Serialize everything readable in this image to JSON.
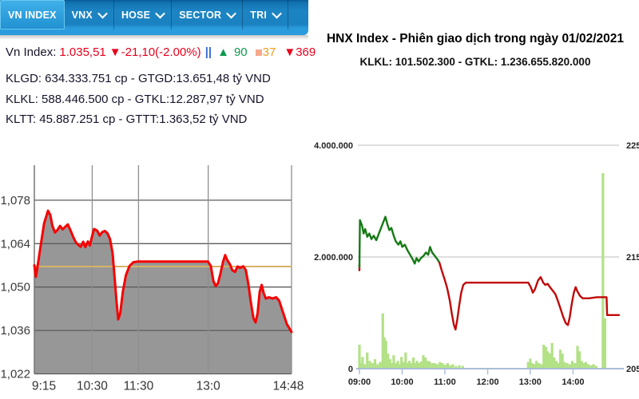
{
  "left_panel": {
    "navbar": {
      "items": [
        {
          "label": "VN INDEX",
          "active": true,
          "has_dropdown": false
        },
        {
          "label": "VNX",
          "active": false,
          "has_dropdown": true
        },
        {
          "label": "HOSE",
          "active": false,
          "has_dropdown": true
        },
        {
          "label": "SECTOR",
          "active": false,
          "has_dropdown": true
        },
        {
          "label": "TRI",
          "active": false,
          "has_dropdown": true
        }
      ]
    },
    "ticker": {
      "label": "Vn Index:",
      "value": "1.035,51",
      "change": "▼-21,10(-2.00%)",
      "separator": "||",
      "up_icon": "▲",
      "up_count": "90",
      "unchanged_count": "37",
      "down_icon": "▼",
      "down_count": "369",
      "colors": {
        "value": "#e8001c",
        "up": "#0d9950",
        "unchanged": "#f09d1e",
        "down": "#e8001c",
        "separator": "#3b6fd4"
      }
    },
    "stats": [
      {
        "text": "KLGD: 634.333.751 cp - GTGD:13.651,48 tỷ VND"
      },
      {
        "text": "KLKL: 588.446.500 cp - GTKL:12.287,97 tỷ VND"
      },
      {
        "text": "KLTT: 45.887.251 cp - GTTT:1.363,52 tỷ VND"
      }
    ]
  },
  "right_panel": {
    "title": "HNX Index - Phiên giao dịch trong ngày 01/02/2021",
    "subtitle": "KLKL: 101.502.300 - GTKL: 1.236.655.820.000"
  },
  "chart_data": [
    {
      "type": "area",
      "name": "VN Index intraday",
      "ylim": [
        1022,
        1088
      ],
      "y_ticks": [
        {
          "label": "1,078",
          "v": 1078
        },
        {
          "label": "1,064",
          "v": 1064
        },
        {
          "label": "1,050",
          "v": 1050
        },
        {
          "label": "1,036",
          "v": 1036
        },
        {
          "label": "1,022",
          "v": 1022
        }
      ],
      "x_ticks": [
        {
          "label": "9:15",
          "f": 0.0
        },
        {
          "label": "10:30",
          "f": 0.225
        },
        {
          "label": "11:30",
          "f": 0.405
        },
        {
          "label": "13:0",
          "f": 0.676
        },
        {
          "label": "14:48",
          "f": 1.0
        }
      ],
      "reference_line": {
        "value": 1056.6,
        "color": "#d7b366"
      },
      "line_color": "#f50000",
      "fill_color": "#979797",
      "grid_color": "#5c5c5c",
      "vgrid_color": "#8f8f8f",
      "series": [
        [
          0.0,
          1057.0
        ],
        [
          0.006,
          1053.3
        ],
        [
          0.014,
          1057.5
        ],
        [
          0.025,
          1063.5
        ],
        [
          0.038,
          1070.5
        ],
        [
          0.053,
          1074.6
        ],
        [
          0.062,
          1073.2
        ],
        [
          0.07,
          1069.8
        ],
        [
          0.08,
          1067.6
        ],
        [
          0.09,
          1068.4
        ],
        [
          0.1,
          1069.7
        ],
        [
          0.11,
          1068.6
        ],
        [
          0.12,
          1069.4
        ],
        [
          0.13,
          1070.2
        ],
        [
          0.142,
          1068.0
        ],
        [
          0.152,
          1066.0
        ],
        [
          0.162,
          1064.3
        ],
        [
          0.172,
          1063.5
        ],
        [
          0.18,
          1063.0
        ],
        [
          0.19,
          1064.6
        ],
        [
          0.198,
          1062.9
        ],
        [
          0.208,
          1064.7
        ],
        [
          0.216,
          1063.4
        ],
        [
          0.224,
          1066.2
        ],
        [
          0.232,
          1068.7
        ],
        [
          0.244,
          1068.2
        ],
        [
          0.254,
          1066.6
        ],
        [
          0.264,
          1067.7
        ],
        [
          0.274,
          1068.1
        ],
        [
          0.284,
          1067.4
        ],
        [
          0.294,
          1065.5
        ],
        [
          0.304,
          1061.0
        ],
        [
          0.312,
          1053.0
        ],
        [
          0.32,
          1045.0
        ],
        [
          0.326,
          1039.6
        ],
        [
          0.334,
          1041.5
        ],
        [
          0.344,
          1048.5
        ],
        [
          0.356,
          1053.8
        ],
        [
          0.37,
          1056.8
        ],
        [
          0.385,
          1058.0
        ],
        [
          0.4,
          1058.2
        ],
        [
          0.675,
          1058.2
        ],
        [
          0.686,
          1056.8
        ],
        [
          0.696,
          1052.0
        ],
        [
          0.705,
          1050.3
        ],
        [
          0.714,
          1051.2
        ],
        [
          0.724,
          1054.5
        ],
        [
          0.734,
          1058.2
        ],
        [
          0.742,
          1060.3
        ],
        [
          0.75,
          1058.7
        ],
        [
          0.76,
          1057.4
        ],
        [
          0.77,
          1055.4
        ],
        [
          0.78,
          1054.9
        ],
        [
          0.79,
          1056.6
        ],
        [
          0.8,
          1056.2
        ],
        [
          0.812,
          1056.7
        ],
        [
          0.822,
          1055.5
        ],
        [
          0.832,
          1051.0
        ],
        [
          0.842,
          1045.0
        ],
        [
          0.852,
          1040.0
        ],
        [
          0.86,
          1038.6
        ],
        [
          0.868,
          1041.5
        ],
        [
          0.876,
          1048.5
        ],
        [
          0.884,
          1050.7
        ],
        [
          0.892,
          1048.0
        ],
        [
          0.9,
          1046.3
        ],
        [
          0.912,
          1046.7
        ],
        [
          0.926,
          1046.3
        ],
        [
          0.94,
          1046.7
        ],
        [
          0.952,
          1045.6
        ],
        [
          0.966,
          1042.0
        ],
        [
          0.982,
          1038.0
        ],
        [
          1.0,
          1035.5
        ]
      ]
    },
    {
      "type": "line+bar",
      "name": "HNX Index intraday",
      "left_axis": {
        "lim": [
          0,
          4000000
        ],
        "ticks": [
          {
            "label": "4.000.000",
            "v": 4000000
          },
          {
            "label": "2.000.000",
            "v": 2000000
          },
          {
            "label": "0",
            "v": 0
          }
        ]
      },
      "right_axis": {
        "lim": [
          205,
          225
        ],
        "ticks": [
          {
            "label": "225",
            "v": 225
          },
          {
            "label": "215",
            "v": 215
          },
          {
            "label": "205",
            "v": 205
          }
        ]
      },
      "x_ticks": [
        {
          "label": "09:00",
          "f": 0.0
        },
        {
          "label": "10:00",
          "f": 0.1646
        },
        {
          "label": "11:00",
          "f": 0.329
        },
        {
          "label": "12:00",
          "f": 0.494
        },
        {
          "label": "13:00",
          "f": 0.658
        },
        {
          "label": "14:00",
          "f": 0.823
        }
      ],
      "grid_color": "#cbcbcb",
      "axis_color": "#a9bdd6",
      "price_segments": [
        {
          "color": "#c00808",
          "points": [
            [
              0.0,
              214.3
            ],
            [
              0.0,
              213.8
            ]
          ]
        },
        {
          "color": "#157a15",
          "points": [
            [
              0.0,
              214.1
            ],
            [
              0.002,
              218.3
            ],
            [
              0.01,
              217.8
            ],
            [
              0.016,
              217.1
            ],
            [
              0.022,
              217.5
            ],
            [
              0.03,
              216.8
            ],
            [
              0.038,
              217.1
            ],
            [
              0.046,
              216.6
            ],
            [
              0.055,
              216.9
            ],
            [
              0.065,
              216.5
            ],
            [
              0.075,
              217.1
            ],
            [
              0.085,
              217.7
            ],
            [
              0.095,
              218.3
            ],
            [
              0.1,
              218.6
            ],
            [
              0.108,
              217.9
            ],
            [
              0.115,
              217.4
            ],
            [
              0.123,
              217.6
            ],
            [
              0.132,
              216.9
            ],
            [
              0.14,
              216.4
            ],
            [
              0.15,
              216.1
            ],
            [
              0.158,
              216.4
            ],
            [
              0.165,
              215.9
            ],
            [
              0.175,
              216.1
            ],
            [
              0.185,
              215.6
            ],
            [
              0.195,
              215.2
            ],
            [
              0.205,
              214.8
            ],
            [
              0.213,
              214.4
            ],
            [
              0.22,
              214.9
            ],
            [
              0.228,
              214.6
            ],
            [
              0.237,
              214.9
            ],
            [
              0.247,
              215.1
            ],
            [
              0.256,
              215.4
            ],
            [
              0.265,
              215.2
            ],
            [
              0.272,
              215.9
            ],
            [
              0.28,
              215.4
            ],
            [
              0.29,
              215.1
            ],
            [
              0.3,
              214.8
            ],
            [
              0.308,
              214.5
            ]
          ]
        },
        {
          "color": "#c00808",
          "points": [
            [
              0.308,
              214.5
            ],
            [
              0.318,
              213.7
            ],
            [
              0.328,
              213.0
            ],
            [
              0.338,
              212.2
            ],
            [
              0.348,
              211.1
            ],
            [
              0.356,
              209.9
            ],
            [
              0.364,
              208.9
            ],
            [
              0.37,
              208.5
            ],
            [
              0.377,
              209.4
            ],
            [
              0.384,
              210.6
            ],
            [
              0.392,
              211.8
            ],
            [
              0.4,
              212.5
            ],
            [
              0.41,
              212.7
            ],
            [
              0.65,
              212.7
            ],
            [
              0.66,
              212.3
            ],
            [
              0.668,
              211.8
            ],
            [
              0.676,
              212.1
            ],
            [
              0.688,
              212.9
            ],
            [
              0.698,
              213.2
            ],
            [
              0.708,
              212.7
            ],
            [
              0.716,
              212.5
            ],
            [
              0.725,
              212.6
            ],
            [
              0.734,
              212.3
            ],
            [
              0.744,
              212.0
            ],
            [
              0.754,
              211.7
            ],
            [
              0.764,
              211.1
            ],
            [
              0.774,
              210.4
            ],
            [
              0.784,
              209.7
            ],
            [
              0.794,
              209.1
            ],
            [
              0.803,
              208.9
            ],
            [
              0.81,
              209.6
            ],
            [
              0.818,
              210.8
            ],
            [
              0.826,
              211.8
            ],
            [
              0.833,
              212.3
            ],
            [
              0.84,
              211.9
            ],
            [
              0.85,
              211.5
            ],
            [
              0.86,
              211.3
            ],
            [
              0.885,
              211.3
            ],
            [
              0.915,
              211.4
            ],
            [
              0.952,
              211.4
            ],
            [
              0.954,
              209.8
            ],
            [
              1.0,
              209.8
            ]
          ]
        }
      ],
      "volume": {
        "color": "#b2e186",
        "bar_width": 3.2,
        "points": [
          [
            0.0,
            430000
          ],
          [
            0.006,
            100000
          ],
          [
            0.012,
            210000
          ],
          [
            0.02,
            80000
          ],
          [
            0.03,
            290000
          ],
          [
            0.04,
            140000
          ],
          [
            0.05,
            100000
          ],
          [
            0.06,
            170000
          ],
          [
            0.07,
            80000
          ],
          [
            0.08,
            120000
          ],
          [
            0.09,
            990000
          ],
          [
            0.096,
            560000
          ],
          [
            0.102,
            500000
          ],
          [
            0.11,
            270000
          ],
          [
            0.118,
            170000
          ],
          [
            0.125,
            100000
          ],
          [
            0.132,
            240000
          ],
          [
            0.14,
            100000
          ],
          [
            0.148,
            140000
          ],
          [
            0.155,
            80000
          ],
          [
            0.162,
            210000
          ],
          [
            0.17,
            120000
          ],
          [
            0.178,
            290000
          ],
          [
            0.185,
            100000
          ],
          [
            0.192,
            140000
          ],
          [
            0.2,
            100000
          ],
          [
            0.208,
            200000
          ],
          [
            0.215,
            100000
          ],
          [
            0.222,
            140000
          ],
          [
            0.23,
            100000
          ],
          [
            0.238,
            130000
          ],
          [
            0.246,
            240000
          ],
          [
            0.254,
            200000
          ],
          [
            0.262,
            140000
          ],
          [
            0.27,
            130000
          ],
          [
            0.28,
            100000
          ],
          [
            0.29,
            100000
          ],
          [
            0.3,
            80000
          ],
          [
            0.31,
            120000
          ],
          [
            0.32,
            100000
          ],
          [
            0.33,
            70000
          ],
          [
            0.34,
            100000
          ],
          [
            0.35,
            60000
          ],
          [
            0.36,
            80000
          ],
          [
            0.372,
            50000
          ],
          [
            0.385,
            60000
          ],
          [
            0.398,
            50000
          ],
          [
            0.65,
            120000
          ],
          [
            0.658,
            180000
          ],
          [
            0.666,
            100000
          ],
          [
            0.674,
            80000
          ],
          [
            0.682,
            140000
          ],
          [
            0.692,
            100000
          ],
          [
            0.702,
            80000
          ],
          [
            0.71,
            430000
          ],
          [
            0.718,
            390000
          ],
          [
            0.726,
            310000
          ],
          [
            0.734,
            270000
          ],
          [
            0.742,
            460000
          ],
          [
            0.75,
            200000
          ],
          [
            0.758,
            140000
          ],
          [
            0.766,
            100000
          ],
          [
            0.774,
            340000
          ],
          [
            0.782,
            270000
          ],
          [
            0.79,
            120000
          ],
          [
            0.8,
            100000
          ],
          [
            0.81,
            80000
          ],
          [
            0.82,
            140000
          ],
          [
            0.83,
            100000
          ],
          [
            0.84,
            410000
          ],
          [
            0.848,
            310000
          ],
          [
            0.856,
            140000
          ],
          [
            0.864,
            100000
          ],
          [
            0.872,
            120000
          ],
          [
            0.882,
            80000
          ],
          [
            0.892,
            60000
          ],
          [
            0.902,
            80000
          ],
          [
            0.912,
            50000
          ],
          [
            0.938,
            3500000
          ],
          [
            0.946,
            900000
          ]
        ]
      }
    }
  ]
}
